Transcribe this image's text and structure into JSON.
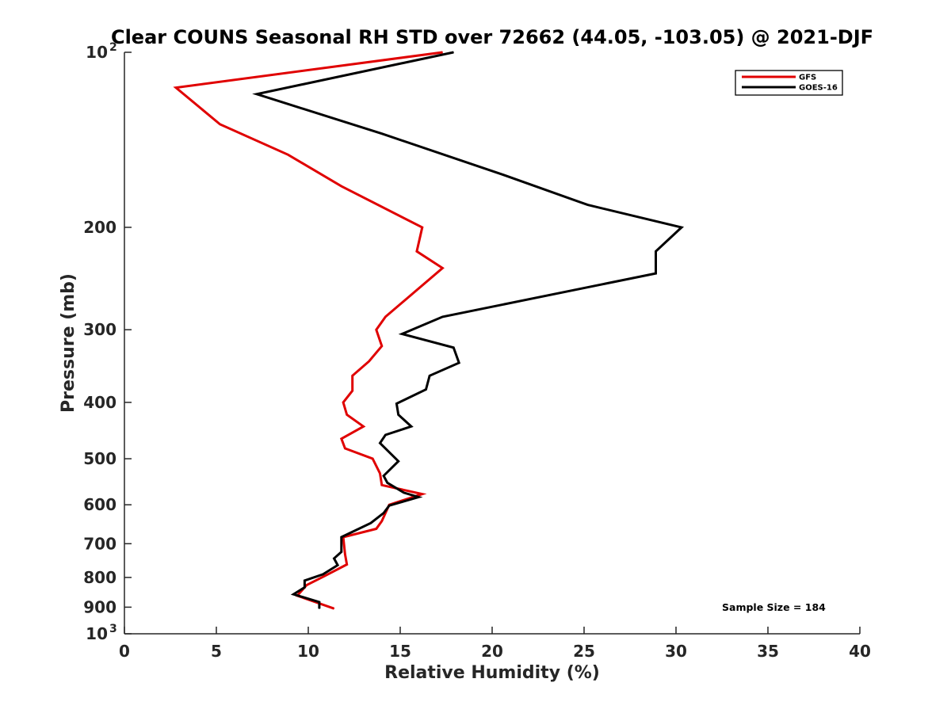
{
  "chart_data": {
    "type": "line",
    "title": "Clear COUNS Seasonal RH STD over 72662 (44.05, -103.05) @ 2021-DJF",
    "xlabel": "Relative Humidity (%)",
    "ylabel": "Pressure (mb)",
    "xlim": [
      0,
      40
    ],
    "ylim": [
      100,
      1000
    ],
    "yscale": "log",
    "y_reversed": true,
    "x_ticks": [
      0,
      5,
      10,
      15,
      20,
      25,
      30,
      35,
      40
    ],
    "y_ticks": [
      {
        "value": 100,
        "label": "10",
        "exp": "2"
      },
      {
        "value": 200,
        "label": "200"
      },
      {
        "value": 300,
        "label": "300"
      },
      {
        "value": 400,
        "label": "400"
      },
      {
        "value": 500,
        "label": "500"
      },
      {
        "value": 600,
        "label": "600"
      },
      {
        "value": 700,
        "label": "700"
      },
      {
        "value": 800,
        "label": "800"
      },
      {
        "value": 900,
        "label": "900"
      },
      {
        "value": 1000,
        "label": "10",
        "exp": "3"
      }
    ],
    "legend": {
      "position": "top-right"
    },
    "annotation": "Sample Size = 184",
    "series": [
      {
        "name": "GFS",
        "color": "#e00000",
        "points": [
          [
            17.3,
            100
          ],
          [
            2.8,
            115
          ],
          [
            5.2,
            133
          ],
          [
            8.9,
            150
          ],
          [
            11.8,
            170
          ],
          [
            16.2,
            200
          ],
          [
            15.9,
            220
          ],
          [
            17.3,
            235
          ],
          [
            15.8,
            258
          ],
          [
            14.2,
            285
          ],
          [
            13.7,
            300
          ],
          [
            14.0,
            320
          ],
          [
            13.3,
            340
          ],
          [
            12.4,
            360
          ],
          [
            12.4,
            382
          ],
          [
            11.9,
            400
          ],
          [
            12.1,
            420
          ],
          [
            13.0,
            440
          ],
          [
            11.8,
            462
          ],
          [
            12.0,
            480
          ],
          [
            13.5,
            500
          ],
          [
            13.9,
            530
          ],
          [
            14.0,
            555
          ],
          [
            16.2,
            575
          ],
          [
            14.4,
            600
          ],
          [
            14.0,
            640
          ],
          [
            13.7,
            660
          ],
          [
            11.9,
            682
          ],
          [
            12.0,
            730
          ],
          [
            12.1,
            760
          ],
          [
            10.9,
            795
          ],
          [
            9.9,
            825
          ],
          [
            9.4,
            860
          ],
          [
            11.4,
            905
          ]
        ]
      },
      {
        "name": "GOES-16",
        "color": "#000000",
        "points": [
          [
            17.9,
            100
          ],
          [
            7.2,
            118
          ],
          [
            14.0,
            138
          ],
          [
            20.5,
            162
          ],
          [
            25.2,
            183
          ],
          [
            30.3,
            200
          ],
          [
            28.9,
            220
          ],
          [
            28.9,
            240
          ],
          [
            17.3,
            285
          ],
          [
            15.1,
            305
          ],
          [
            17.9,
            322
          ],
          [
            18.2,
            342
          ],
          [
            16.6,
            360
          ],
          [
            16.4,
            380
          ],
          [
            14.8,
            402
          ],
          [
            14.9,
            420
          ],
          [
            15.6,
            440
          ],
          [
            14.2,
            455
          ],
          [
            13.9,
            470
          ],
          [
            14.9,
            505
          ],
          [
            14.1,
            535
          ],
          [
            14.3,
            550
          ],
          [
            15.2,
            572
          ],
          [
            16.0,
            582
          ],
          [
            14.4,
            602
          ],
          [
            14.1,
            620
          ],
          [
            13.4,
            645
          ],
          [
            11.8,
            682
          ],
          [
            11.8,
            723
          ],
          [
            11.4,
            742
          ],
          [
            11.6,
            762
          ],
          [
            10.8,
            790
          ],
          [
            9.8,
            810
          ],
          [
            9.8,
            832
          ],
          [
            9.2,
            855
          ],
          [
            10.6,
            882
          ],
          [
            10.6,
            905
          ]
        ]
      }
    ]
  }
}
